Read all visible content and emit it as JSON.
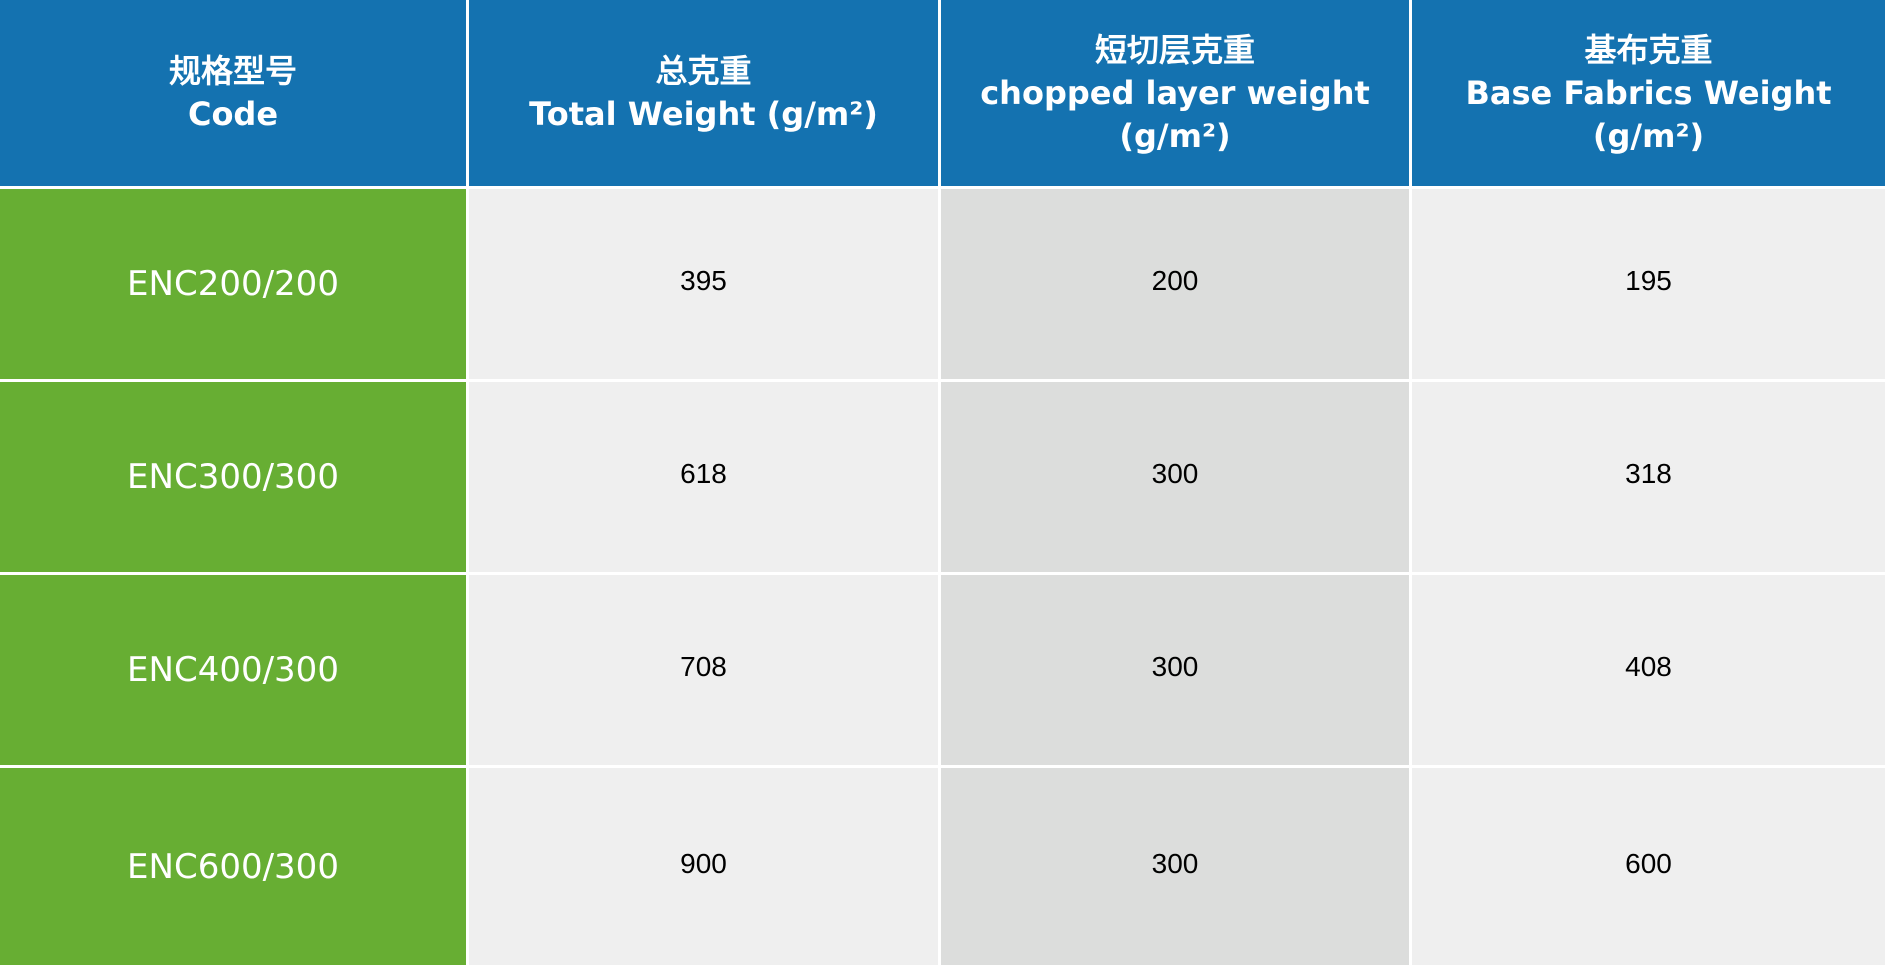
{
  "header": [
    {
      "zh": "规格型号",
      "en": "Code",
      "unit": ""
    },
    {
      "zh": "总克重",
      "en": "Total Weight (g/m²)",
      "unit": ""
    },
    {
      "zh": "短切层克重",
      "en": "chopped layer weight",
      "unit": "(g/m²)"
    },
    {
      "zh": "基布克重",
      "en": "Base Fabrics Weight",
      "unit": "(g/m²)"
    }
  ],
  "rows": [
    {
      "code": "ENC200/200",
      "total": "395",
      "chopped": "200",
      "base": "195"
    },
    {
      "code": "ENC300/300",
      "total": "618",
      "chopped": "300",
      "base": "318"
    },
    {
      "code": "ENC400/300",
      "total": "708",
      "chopped": "300",
      "base": "408"
    },
    {
      "code": "ENC600/300",
      "total": "900",
      "chopped": "300",
      "base": "600"
    }
  ],
  "colors": {
    "header": "#1472b0",
    "code_column": "#67ae33",
    "cell": "#efefef",
    "cell_alt": "#dcdddc"
  }
}
